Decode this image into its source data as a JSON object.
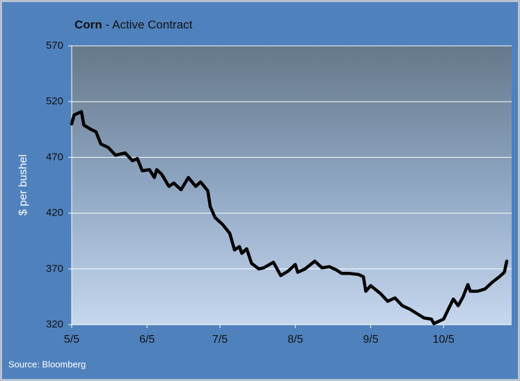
{
  "chart_data": {
    "type": "line",
    "title": "Corn",
    "title_suffix": "- Active Contract",
    "ylabel": "$ per bushel",
    "source": "Source: Bloomberg",
    "xlim": [
      "5/5",
      "11/2"
    ],
    "xticks": [
      "5/5",
      "6/5",
      "7/5",
      "8/5",
      "9/5",
      "10/5"
    ],
    "ylim": [
      320,
      570
    ],
    "yticks": [
      320,
      370,
      420,
      470,
      520,
      570
    ],
    "grid": true,
    "series": [
      {
        "name": "Corn",
        "color": "#000000",
        "x": [
          "5/5",
          "5/6",
          "5/8",
          "5/9",
          "5/10",
          "5/13",
          "5/15",
          "5/17",
          "5/20",
          "5/23",
          "5/27",
          "5/30",
          "6/1",
          "6/3",
          "6/6",
          "6/8",
          "6/9",
          "6/11",
          "6/14",
          "6/16",
          "6/19",
          "6/22",
          "6/25",
          "6/27",
          "6/30",
          "7/1",
          "7/3",
          "7/6",
          "7/9",
          "7/11",
          "7/13",
          "7/14",
          "7/16",
          "7/18",
          "7/21",
          "7/23",
          "7/27",
          "7/30",
          "8/2",
          "8/5",
          "8/6",
          "8/9",
          "8/13",
          "8/16",
          "8/19",
          "8/22",
          "8/24",
          "8/27",
          "8/31",
          "9/2",
          "9/3",
          "9/5",
          "9/9",
          "9/12",
          "9/15",
          "9/18",
          "9/21",
          "9/24",
          "9/27",
          "9/30",
          "10/1",
          "10/3",
          "10/5",
          "10/7",
          "10/9",
          "10/11",
          "10/13",
          "10/15",
          "10/16",
          "10/19",
          "10/22",
          "10/25",
          "10/28",
          "10/30",
          "10/31"
        ],
        "values": [
          500,
          508,
          510,
          511,
          499,
          495,
          493,
          482,
          479,
          472,
          474,
          467,
          469,
          458,
          459,
          452,
          459,
          455,
          444,
          447,
          441,
          452,
          444,
          448,
          440,
          426,
          416,
          410,
          402,
          387,
          390,
          384,
          388,
          375,
          370,
          371,
          376,
          364,
          368,
          374,
          367,
          370,
          377,
          371,
          372,
          369,
          366,
          366,
          365,
          363,
          350,
          355,
          348,
          341,
          344,
          337,
          334,
          330,
          326,
          325,
          321,
          323,
          325,
          334,
          343,
          337,
          345,
          356,
          350,
          350,
          352,
          358,
          363,
          367,
          377
        ]
      }
    ]
  }
}
